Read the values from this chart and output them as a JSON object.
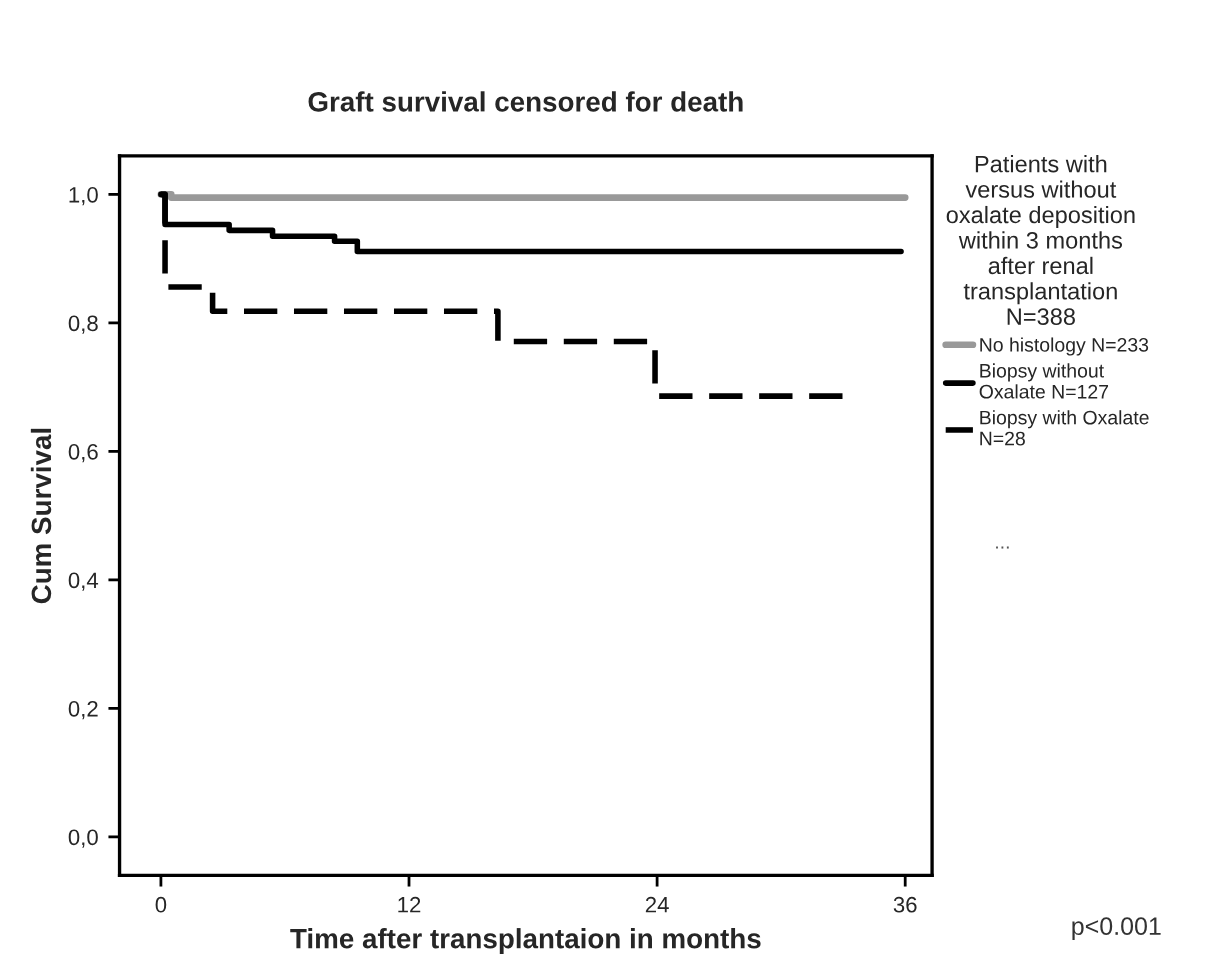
{
  "chart_data": {
    "type": "step",
    "title": "Graft survival censored for death",
    "xlabel": "Time after transplantaion in months",
    "ylabel": "Cum Survival",
    "legend_title": "Patients with\nversus without\noxalate deposition\nwithin 3 months\nafter renal\ntransplantation\nN=388",
    "series": [
      {
        "name": "No histology N=233",
        "color": "#999999",
        "line_style": "solid",
        "x": [
          0,
          0.5,
          36
        ],
        "values": [
          1.0,
          0.995,
          0.995
        ]
      },
      {
        "name": "Biopsy without\nOxalate N=127",
        "color": "#000000",
        "line_style": "solid",
        "x": [
          0,
          0.2,
          3.3,
          5.4,
          8.4,
          9.5,
          35.8
        ],
        "values": [
          1.0,
          0.953,
          0.944,
          0.935,
          0.927,
          0.911,
          0.911
        ]
      },
      {
        "name": "Biopsy with Oxalate\nN=28",
        "color": "#000000",
        "line_style": "dashed",
        "x": [
          0,
          0.2,
          2.5,
          16.3,
          23.9,
          33.3
        ],
        "values": [
          1.0,
          0.856,
          0.818,
          0.771,
          0.686,
          0.686
        ]
      }
    ],
    "xlim": [
      -2,
      37.3
    ],
    "ylim": [
      -0.06,
      1.06
    ],
    "xticks": [
      0,
      12,
      24,
      36
    ],
    "yticks": [
      {
        "value": 0,
        "label": "0,0"
      },
      {
        "value": 0.2,
        "label": "0,2"
      },
      {
        "value": 0.4,
        "label": "0,4"
      },
      {
        "value": 0.6,
        "label": "0,6"
      },
      {
        "value": 0.8,
        "label": "0,8"
      },
      {
        "value": 1.0,
        "label": "1,0"
      }
    ],
    "grid": false,
    "legend": "right",
    "marker": "none",
    "annotations": [
      "...",
      "p<0.001"
    ]
  }
}
